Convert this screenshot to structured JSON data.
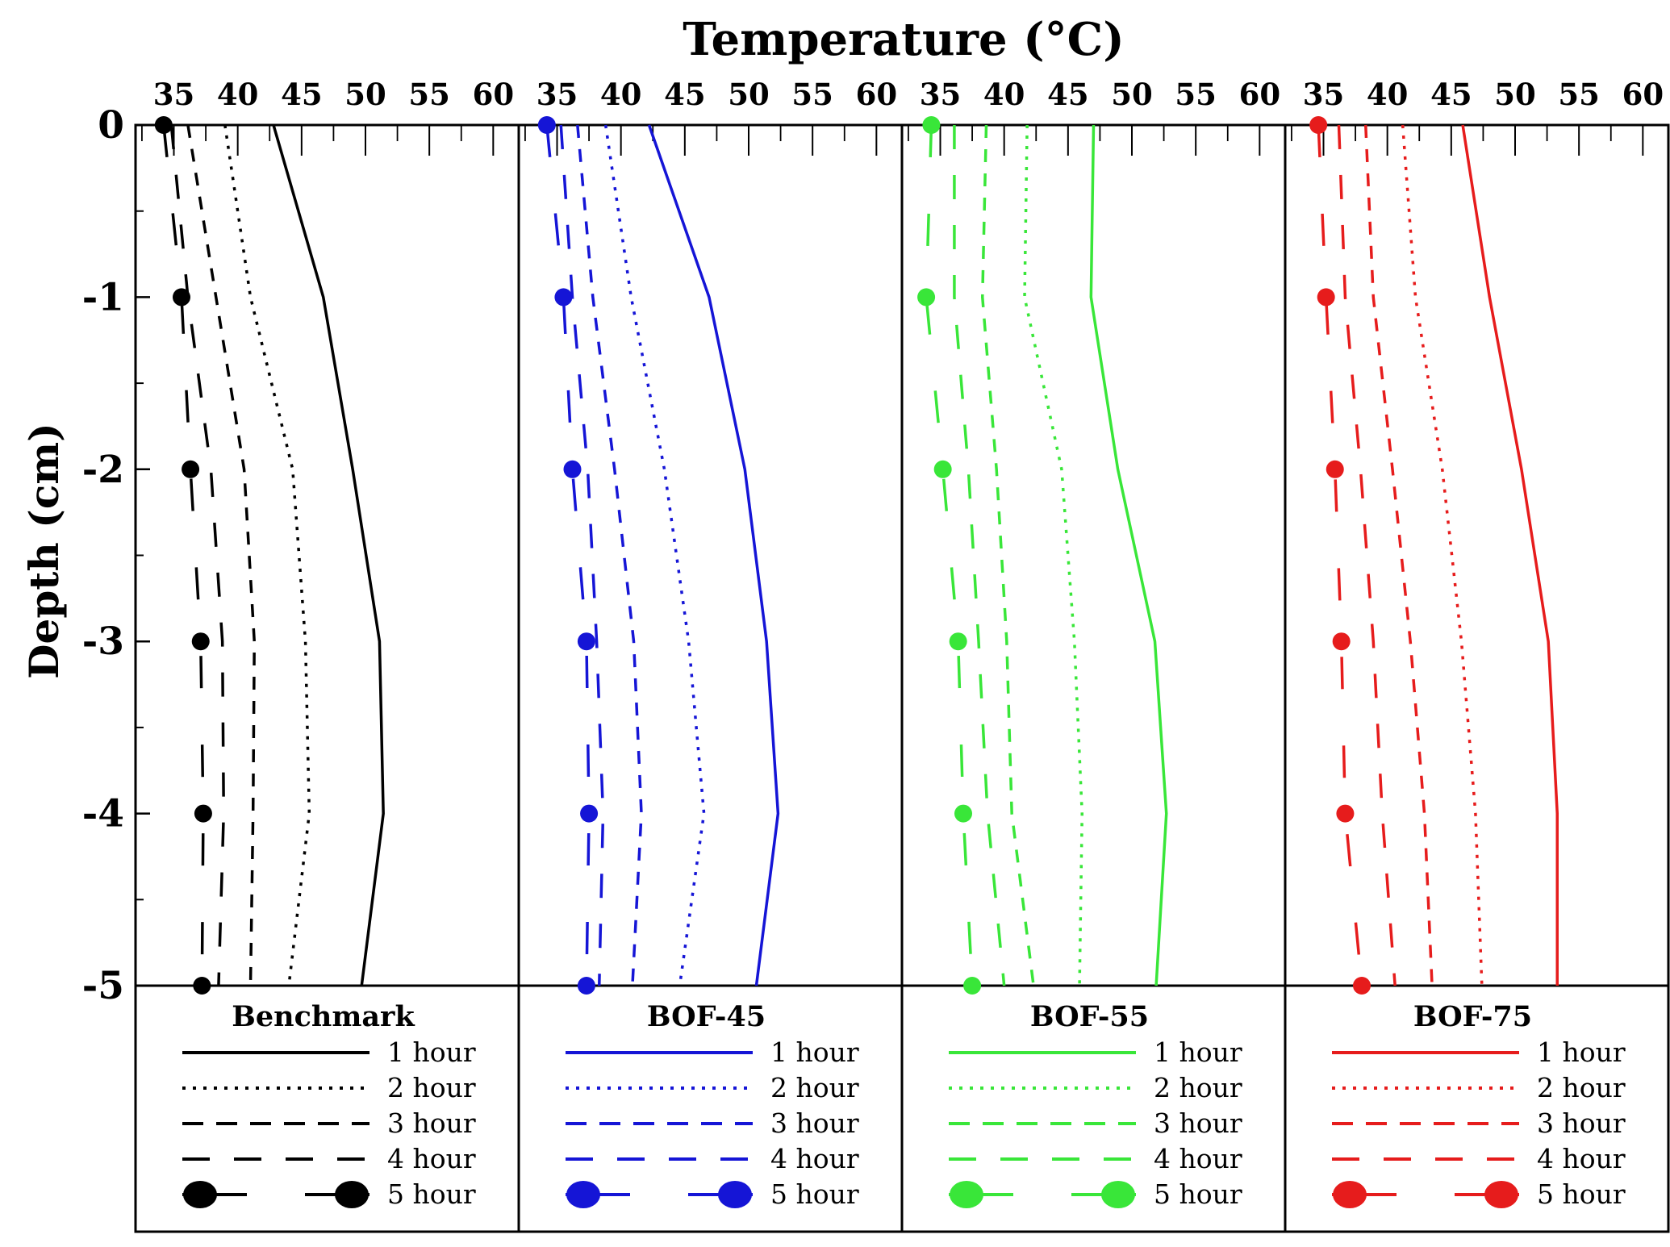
{
  "chart_data": {
    "type": "line",
    "title": "Temperature (°C)",
    "ylabel": "Depth (cm)",
    "xlim": [
      32,
      62
    ],
    "ylim": [
      -5,
      0
    ],
    "x_ticks": [
      "35",
      "40",
      "45",
      "50",
      "55",
      "60"
    ],
    "y_ticks": [
      "0",
      "-1",
      "-2",
      "-3",
      "-4",
      "-5"
    ],
    "depth": [
      0,
      -1,
      -2,
      -3,
      -4,
      -5
    ],
    "panels": [
      {
        "name": "Benchmark",
        "color": "#000000",
        "series": [
          {
            "name": "1 hour",
            "style": "solid",
            "values": [
              42.8,
              46.7,
              49.0,
              51.1,
              51.4,
              49.7
            ]
          },
          {
            "name": "2 hour",
            "style": "dotted",
            "values": [
              39.0,
              41.0,
              44.3,
              45.3,
              45.6,
              44.0
            ]
          },
          {
            "name": "3 hour",
            "style": "dashed",
            "values": [
              36.1,
              38.3,
              40.5,
              41.3,
              41.2,
              41.0
            ]
          },
          {
            "name": "4 hour",
            "style": "longdash",
            "values": [
              34.8,
              36.1,
              37.9,
              38.8,
              38.9,
              38.5
            ]
          },
          {
            "name": "5 hour",
            "style": "longdash-dot",
            "values": [
              34.2,
              35.6,
              36.3,
              37.1,
              37.3,
              37.2
            ]
          }
        ]
      },
      {
        "name": "BOF-45",
        "color": "#1515d6",
        "series": [
          {
            "name": "1 hour",
            "style": "solid",
            "values": [
              42.2,
              46.9,
              49.7,
              51.4,
              52.3,
              50.6
            ]
          },
          {
            "name": "2 hour",
            "style": "dotted",
            "values": [
              38.8,
              40.8,
              43.4,
              45.3,
              46.5,
              44.6
            ]
          },
          {
            "name": "3 hour",
            "style": "dashed",
            "values": [
              36.6,
              37.8,
              39.5,
              41.0,
              41.6,
              40.9
            ]
          },
          {
            "name": "4 hour",
            "style": "longdash",
            "values": [
              35.3,
              36.2,
              37.4,
              38.1,
              38.6,
              38.3
            ]
          },
          {
            "name": "5 hour",
            "style": "longdash-dot",
            "values": [
              34.2,
              35.5,
              36.2,
              37.3,
              37.5,
              37.3
            ]
          }
        ]
      },
      {
        "name": "BOF-55",
        "color": "#39e639",
        "series": [
          {
            "name": "1 hour",
            "style": "solid",
            "values": [
              47.0,
              46.8,
              48.9,
              51.8,
              52.7,
              51.9
            ]
          },
          {
            "name": "2 hour",
            "style": "dotted",
            "values": [
              41.8,
              41.6,
              44.5,
              45.5,
              46.1,
              45.9
            ]
          },
          {
            "name": "3 hour",
            "style": "dashed",
            "values": [
              38.6,
              38.3,
              39.4,
              40.2,
              40.6,
              42.3
            ]
          },
          {
            "name": "4 hour",
            "style": "longdash",
            "values": [
              36.1,
              36.1,
              37.2,
              38.0,
              38.7,
              40.0
            ]
          },
          {
            "name": "5 hour",
            "style": "longdash-dot",
            "values": [
              34.3,
              33.9,
              35.2,
              36.4,
              36.8,
              37.5
            ]
          }
        ]
      },
      {
        "name": "BOF-75",
        "color": "#e61c1c",
        "series": [
          {
            "name": "1 hour",
            "style": "solid",
            "values": [
              45.9,
              48.0,
              50.5,
              52.6,
              53.3,
              53.3
            ]
          },
          {
            "name": "2 hour",
            "style": "dotted",
            "values": [
              41.2,
              42.2,
              44.3,
              45.8,
              46.9,
              47.4
            ]
          },
          {
            "name": "3 hour",
            "style": "dashed",
            "values": [
              38.3,
              38.9,
              40.4,
              41.8,
              42.9,
              43.5
            ]
          },
          {
            "name": "4 hour",
            "style": "longdash",
            "values": [
              36.2,
              36.7,
              37.9,
              38.9,
              39.6,
              40.6
            ]
          },
          {
            "name": "5 hour",
            "style": "longdash-dot",
            "values": [
              34.6,
              35.2,
              35.9,
              36.4,
              36.7,
              38.0
            ]
          }
        ]
      }
    ]
  }
}
